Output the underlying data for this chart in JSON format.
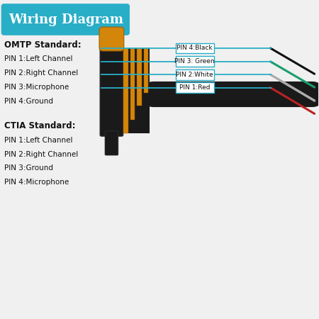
{
  "title": "Wiring Diagram",
  "title_bg": "#29aec7",
  "title_color": "#ffffff",
  "omtp_label": "OMTP Standard:",
  "omtp_pins": [
    "PIN 1:Left Channel",
    "PIN 2:Right Channel",
    "PIN 3:Microphone",
    "PIN 4:Ground"
  ],
  "ctia_label": "CTIA Standard:",
  "ctia_pins": [
    "PIN 1:Left Channel",
    "PIN 2:Right Channel",
    "PIN 3:Ground",
    "PIN 4:Microphone"
  ],
  "wire_labels": [
    "PIN 4:Black",
    "PIN 3: Green",
    "PIN 2:White",
    "PIN 1:Red"
  ],
  "wire_colors": [
    "#111111",
    "#1a9e6e",
    "#dddddd",
    "#bb2222"
  ],
  "wire_line_color": "#29aec7",
  "jack_body_color": "#1a1a1a",
  "jack_tip_color": "#d4860a",
  "jack_band_color": "#29aec7",
  "background_color": "#f0f0f0"
}
